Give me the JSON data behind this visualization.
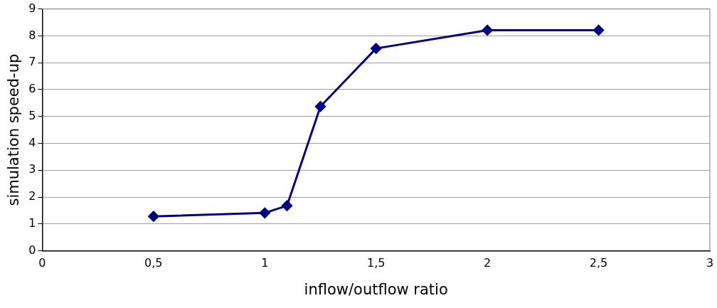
{
  "chart_data": {
    "type": "line",
    "xlabel": "inflow/outflow ratio",
    "ylabel": "simulation speed-up",
    "x": [
      0.5,
      1,
      1.1,
      1.25,
      1.5,
      2,
      2.5
    ],
    "series": [
      {
        "color": "#000080",
        "values": [
          1.28,
          1.41,
          1.68,
          5.37,
          7.53,
          8.21,
          8.21
        ]
      }
    ],
    "xlim": [
      0,
      3
    ],
    "xticks": [
      0,
      {
        "value": 0.5,
        "label": "0,5"
      },
      1,
      {
        "value": 1.5,
        "label": "1,5"
      },
      2,
      {
        "value": 2.5,
        "label": "2,5"
      },
      3
    ],
    "ylim": [
      0,
      9
    ],
    "yticks": [
      0,
      1,
      2,
      3,
      4,
      5,
      6,
      7,
      8,
      9
    ],
    "grid": "y",
    "legend": false,
    "marker": "diamond",
    "line_style": "solid"
  }
}
